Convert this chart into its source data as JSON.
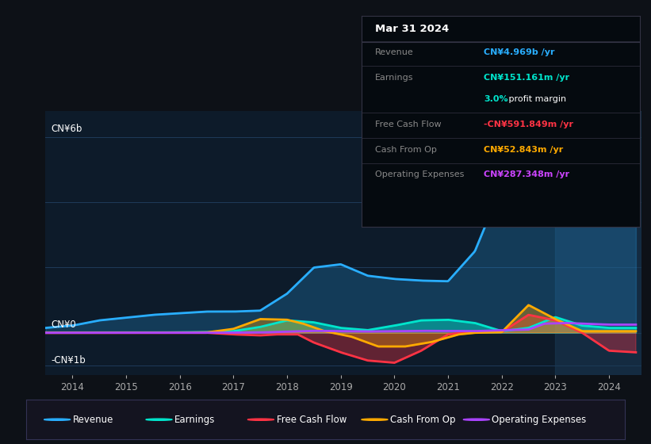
{
  "bg_color": "#0d1117",
  "chart_bg": "#0d1b2a",
  "grid_color": "#1e3a5a",
  "title_date": "Mar 31 2024",
  "tooltip": {
    "Revenue": {
      "value": "CN¥4.969b /yr",
      "color": "#29aeff"
    },
    "Earnings": {
      "value": "CN¥151.161m /yr",
      "color": "#00e5cc"
    },
    "profit_margin_pct": "3.0%",
    "profit_margin_color": "#00e5cc",
    "Free Cash Flow": {
      "value": "-CN¥591.849m /yr",
      "color": "#ff3344"
    },
    "Cash From Op": {
      "value": "CN¥52.843m /yr",
      "color": "#ffaa00"
    },
    "Operating Expenses": {
      "value": "CN¥287.348m /yr",
      "color": "#cc44ff"
    }
  },
  "revenue_color": "#29aeff",
  "earnings_color": "#00e5cc",
  "fcf_color": "#ff3344",
  "cashfromop_color": "#ffaa00",
  "opex_color": "#aa44ff",
  "ylabel_top": "CN¥6b",
  "ylabel_zero": "CN¥0",
  "ylabel_bottom": "-CN¥1b",
  "legend_items": [
    {
      "label": "Revenue",
      "color": "#29aeff"
    },
    {
      "label": "Earnings",
      "color": "#00e5cc"
    },
    {
      "label": "Free Cash Flow",
      "color": "#ff3344"
    },
    {
      "label": "Cash From Op",
      "color": "#ffaa00"
    },
    {
      "label": "Operating Expenses",
      "color": "#aa44ff"
    }
  ],
  "years": [
    2014,
    2015,
    2016,
    2017,
    2018,
    2019,
    2020,
    2021,
    2022,
    2023,
    2024
  ]
}
